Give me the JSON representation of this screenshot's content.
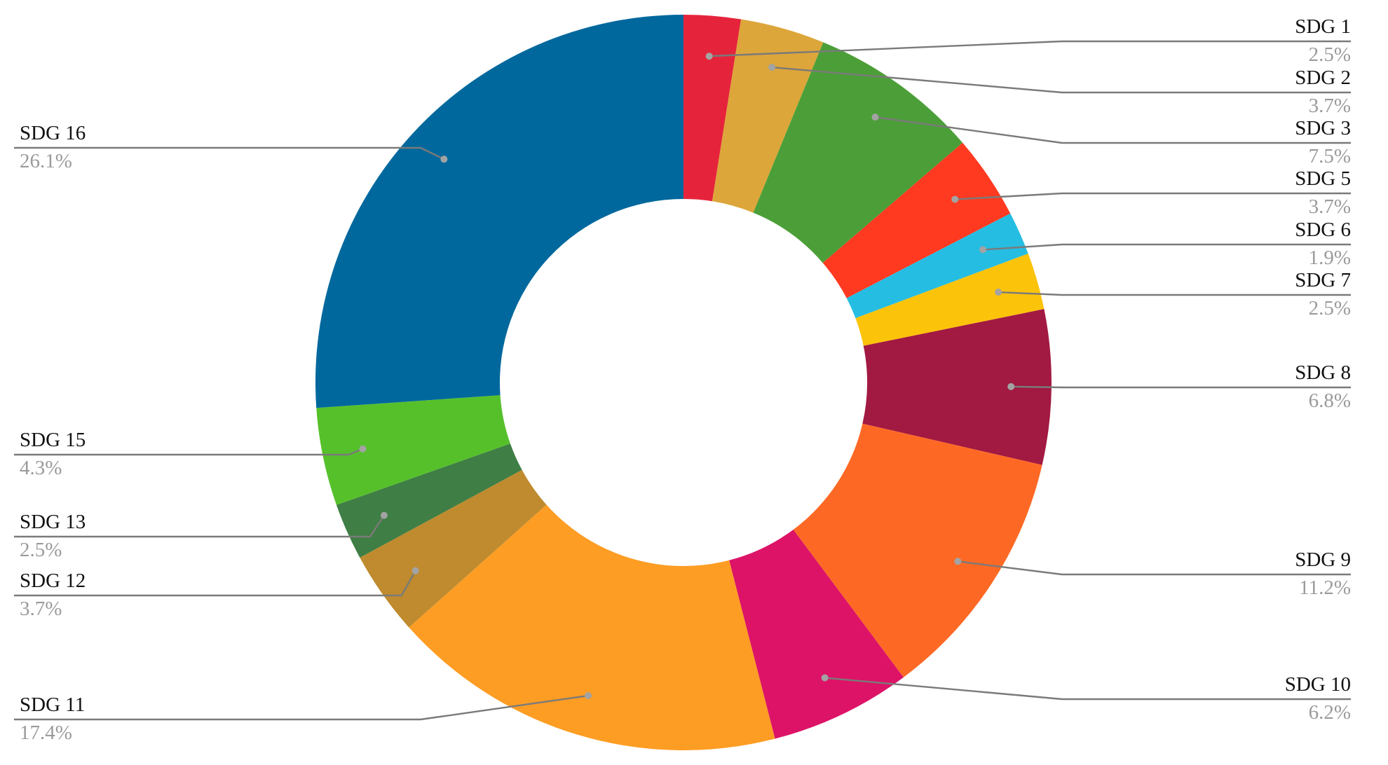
{
  "chart_data": {
    "type": "pie",
    "donut": true,
    "title": "",
    "legend": "none",
    "slices": [
      {
        "label": "SDG 1",
        "value": 2.5,
        "value_label": "2.5%",
        "color": "#E5243B"
      },
      {
        "label": "SDG 2",
        "value": 3.7,
        "value_label": "3.7%",
        "color": "#DDA63A"
      },
      {
        "label": "SDG 3",
        "value": 7.5,
        "value_label": "7.5%",
        "color": "#4C9F38"
      },
      {
        "label": "SDG 5",
        "value": 3.7,
        "value_label": "3.7%",
        "color": "#FF3A21"
      },
      {
        "label": "SDG 6",
        "value": 1.9,
        "value_label": "1.9%",
        "color": "#26BDE2"
      },
      {
        "label": "SDG 7",
        "value": 2.5,
        "value_label": "2.5%",
        "color": "#FCC30B"
      },
      {
        "label": "SDG 8",
        "value": 6.8,
        "value_label": "6.8%",
        "color": "#A21942"
      },
      {
        "label": "SDG 9",
        "value": 11.2,
        "value_label": "11.2%",
        "color": "#FD6925"
      },
      {
        "label": "SDG 10",
        "value": 6.2,
        "value_label": "6.2%",
        "color": "#DD1367"
      },
      {
        "label": "SDG 11",
        "value": 17.4,
        "value_label": "17.4%",
        "color": "#FD9D24"
      },
      {
        "label": "SDG 12",
        "value": 3.7,
        "value_label": "3.7%",
        "color": "#BF8B2E"
      },
      {
        "label": "SDG 13",
        "value": 2.5,
        "value_label": "2.5%",
        "color": "#3F7E44"
      },
      {
        "label": "SDG 15",
        "value": 4.3,
        "value_label": "4.3%",
        "color": "#56C02B"
      },
      {
        "label": "SDG 16",
        "value": 26.1,
        "value_label": "26.1%",
        "color": "#00689D"
      }
    ]
  }
}
